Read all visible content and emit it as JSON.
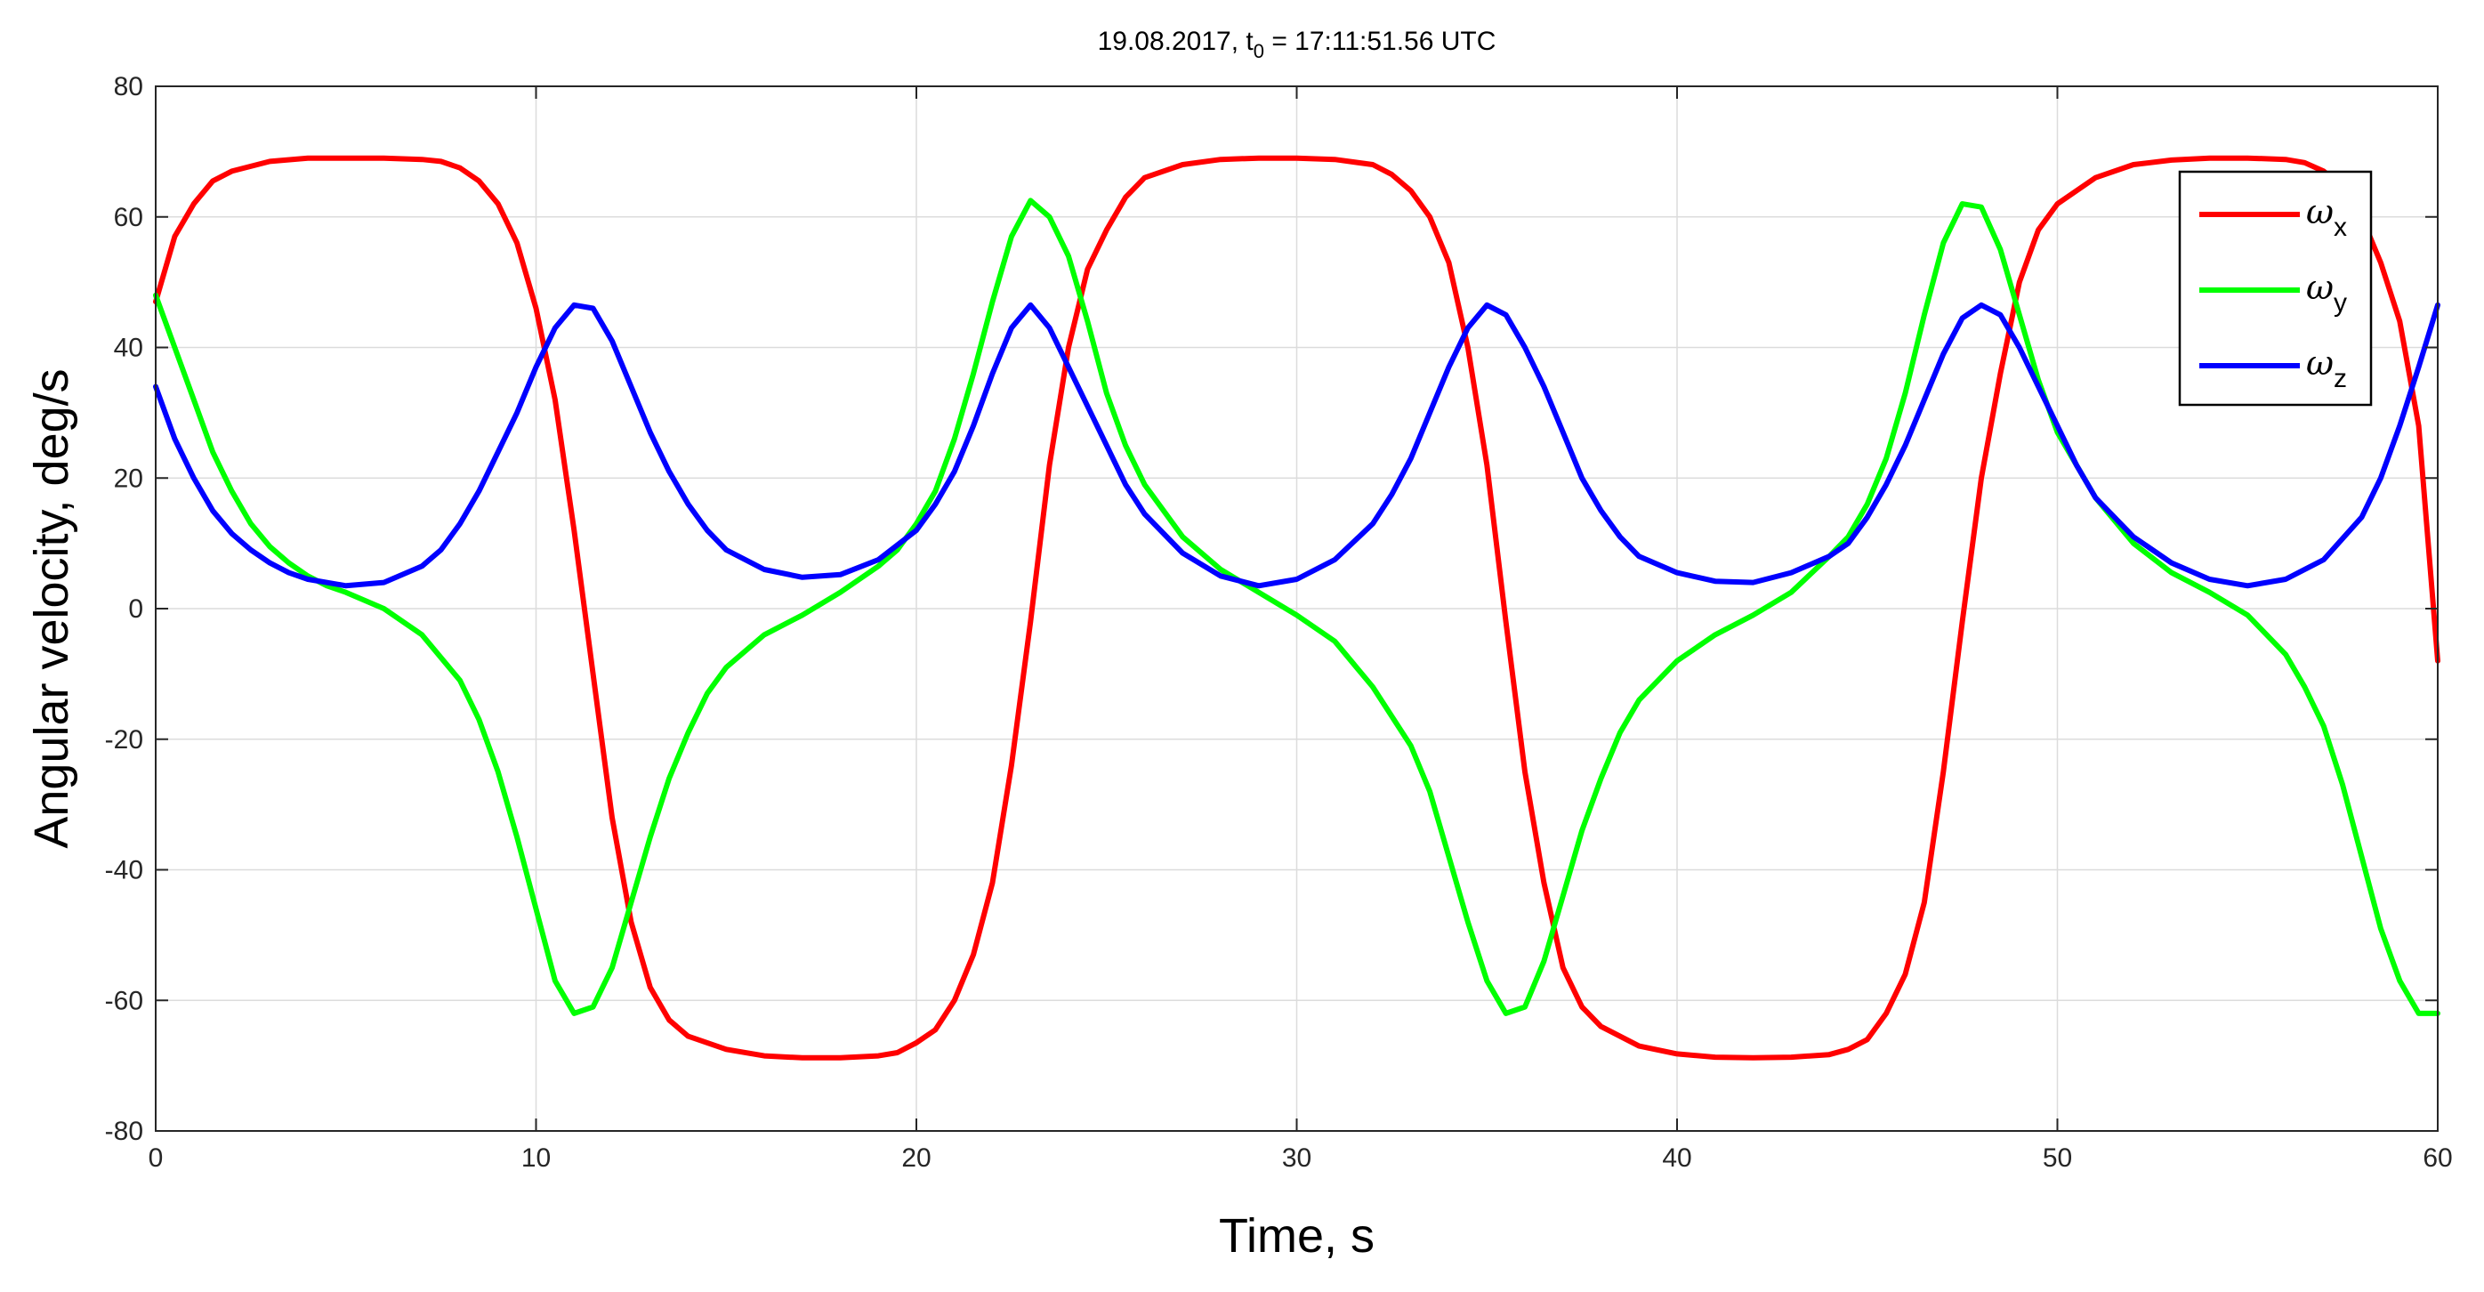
{
  "chart_data": {
    "type": "line",
    "title": {
      "date": "19.08.2017, t",
      "subscript": "0",
      "rest": " = 17:11:51.56 UTC"
    },
    "xlabel": "Time, s",
    "ylabel": "Angular velocity, deg/s",
    "xlim": [
      0,
      60
    ],
    "ylim": [
      -80,
      80
    ],
    "xticks": [
      0,
      10,
      20,
      30,
      40,
      50,
      60
    ],
    "yticks": [
      -80,
      -60,
      -40,
      -20,
      0,
      20,
      40,
      60,
      80
    ],
    "grid": true,
    "legend_position": "top-right",
    "series": [
      {
        "name": "ω",
        "subscript": "x",
        "color": "#ff0000",
        "points": [
          [
            0,
            47
          ],
          [
            0.5,
            57
          ],
          [
            1,
            62
          ],
          [
            1.5,
            65.5
          ],
          [
            2,
            67
          ],
          [
            3,
            68.5
          ],
          [
            4,
            69
          ],
          [
            5,
            69
          ],
          [
            6,
            69
          ],
          [
            7,
            68.8
          ],
          [
            7.5,
            68.5
          ],
          [
            8,
            67.5
          ],
          [
            8.5,
            65.5
          ],
          [
            9,
            62
          ],
          [
            9.5,
            56
          ],
          [
            10,
            46
          ],
          [
            10.5,
            32
          ],
          [
            11,
            12
          ],
          [
            11.5,
            -10
          ],
          [
            12,
            -32
          ],
          [
            12.5,
            -48
          ],
          [
            13,
            -58
          ],
          [
            13.5,
            -63
          ],
          [
            14,
            -65.5
          ],
          [
            15,
            -67.5
          ],
          [
            16,
            -68.5
          ],
          [
            17,
            -68.8
          ],
          [
            18,
            -68.8
          ],
          [
            19,
            -68.5
          ],
          [
            19.5,
            -68
          ],
          [
            20,
            -66.5
          ],
          [
            20.5,
            -64.5
          ],
          [
            21,
            -60
          ],
          [
            21.5,
            -53
          ],
          [
            22,
            -42
          ],
          [
            22.5,
            -24
          ],
          [
            23,
            -2
          ],
          [
            23.5,
            22
          ],
          [
            24,
            40
          ],
          [
            24.5,
            52
          ],
          [
            25,
            58
          ],
          [
            25.5,
            63
          ],
          [
            26,
            66
          ],
          [
            27,
            68
          ],
          [
            28,
            68.8
          ],
          [
            29,
            69
          ],
          [
            30,
            69
          ],
          [
            31,
            68.8
          ],
          [
            32,
            68
          ],
          [
            32.5,
            66.5
          ],
          [
            33,
            64
          ],
          [
            33.5,
            60
          ],
          [
            34,
            53
          ],
          [
            34.5,
            40
          ],
          [
            35,
            22
          ],
          [
            35.5,
            -2
          ],
          [
            36,
            -25
          ],
          [
            36.5,
            -42
          ],
          [
            37,
            -55
          ],
          [
            37.5,
            -61
          ],
          [
            38,
            -64
          ],
          [
            39,
            -67
          ],
          [
            40,
            -68.2
          ],
          [
            41,
            -68.7
          ],
          [
            42,
            -68.8
          ],
          [
            43,
            -68.7
          ],
          [
            44,
            -68.3
          ],
          [
            44.5,
            -67.5
          ],
          [
            45,
            -66
          ],
          [
            45.5,
            -62
          ],
          [
            46,
            -56
          ],
          [
            46.5,
            -45
          ],
          [
            47,
            -25
          ],
          [
            47.5,
            -2
          ],
          [
            48,
            20
          ],
          [
            48.5,
            36
          ],
          [
            49,
            50
          ],
          [
            49.5,
            58
          ],
          [
            50,
            62
          ],
          [
            51,
            66
          ],
          [
            52,
            68
          ],
          [
            53,
            68.7
          ],
          [
            54,
            69
          ],
          [
            55,
            69
          ],
          [
            56,
            68.8
          ],
          [
            56.5,
            68.3
          ],
          [
            57,
            67
          ],
          [
            57.5,
            64.5
          ],
          [
            58,
            60
          ],
          [
            58.5,
            53
          ],
          [
            59,
            44
          ],
          [
            59.5,
            28
          ],
          [
            60,
            -8
          ]
        ]
      },
      {
        "name": "ω",
        "subscript": "y",
        "color": "#00ff00",
        "points": [
          [
            0,
            48
          ],
          [
            0.5,
            40
          ],
          [
            1,
            32
          ],
          [
            1.5,
            24
          ],
          [
            2,
            18
          ],
          [
            2.5,
            13
          ],
          [
            3,
            9.5
          ],
          [
            3.5,
            7
          ],
          [
            4,
            5
          ],
          [
            4.5,
            3.5
          ],
          [
            5,
            2.5
          ],
          [
            6,
            0
          ],
          [
            7,
            -4
          ],
          [
            8,
            -11
          ],
          [
            8.5,
            -17
          ],
          [
            9,
            -25
          ],
          [
            9.5,
            -35
          ],
          [
            10,
            -46
          ],
          [
            10.5,
            -57
          ],
          [
            11,
            -62
          ],
          [
            11.5,
            -61
          ],
          [
            12,
            -55
          ],
          [
            12.5,
            -45
          ],
          [
            13,
            -35
          ],
          [
            13.5,
            -26
          ],
          [
            14,
            -19
          ],
          [
            14.5,
            -13
          ],
          [
            15,
            -9
          ],
          [
            16,
            -4
          ],
          [
            17,
            -1
          ],
          [
            18,
            2.5
          ],
          [
            19,
            6.5
          ],
          [
            19.5,
            9
          ],
          [
            20,
            13
          ],
          [
            20.5,
            18
          ],
          [
            21,
            26
          ],
          [
            21.5,
            36
          ],
          [
            22,
            47
          ],
          [
            22.5,
            57
          ],
          [
            23,
            62.5
          ],
          [
            23.5,
            60
          ],
          [
            24,
            54
          ],
          [
            24.5,
            44
          ],
          [
            25,
            33
          ],
          [
            25.5,
            25
          ],
          [
            26,
            19
          ],
          [
            27,
            11
          ],
          [
            28,
            6
          ],
          [
            29,
            2.5
          ],
          [
            30,
            -1
          ],
          [
            31,
            -5
          ],
          [
            32,
            -12
          ],
          [
            33,
            -21
          ],
          [
            33.5,
            -28
          ],
          [
            34,
            -38
          ],
          [
            34.5,
            -48
          ],
          [
            35,
            -57
          ],
          [
            35.5,
            -62
          ],
          [
            36,
            -61
          ],
          [
            36.5,
            -54
          ],
          [
            37,
            -44
          ],
          [
            37.5,
            -34
          ],
          [
            38,
            -26
          ],
          [
            38.5,
            -19
          ],
          [
            39,
            -14
          ],
          [
            40,
            -8
          ],
          [
            41,
            -4
          ],
          [
            42,
            -1
          ],
          [
            43,
            2.5
          ],
          [
            44,
            8
          ],
          [
            44.5,
            11
          ],
          [
            45,
            16
          ],
          [
            45.5,
            23
          ],
          [
            46,
            33
          ],
          [
            46.5,
            45
          ],
          [
            47,
            56
          ],
          [
            47.5,
            62
          ],
          [
            48,
            61.5
          ],
          [
            48.5,
            55
          ],
          [
            49,
            45
          ],
          [
            49.5,
            35
          ],
          [
            50,
            27
          ],
          [
            51,
            17
          ],
          [
            52,
            10
          ],
          [
            53,
            5.5
          ],
          [
            54,
            2.5
          ],
          [
            55,
            -1
          ],
          [
            56,
            -7
          ],
          [
            56.5,
            -12
          ],
          [
            57,
            -18
          ],
          [
            57.5,
            -27
          ],
          [
            58,
            -38
          ],
          [
            58.5,
            -49
          ],
          [
            59,
            -57
          ],
          [
            59.5,
            -62
          ],
          [
            60,
            -62
          ]
        ]
      },
      {
        "name": "ω",
        "subscript": "z",
        "color": "#0000ff",
        "points": [
          [
            0,
            34
          ],
          [
            0.5,
            26
          ],
          [
            1,
            20
          ],
          [
            1.5,
            15
          ],
          [
            2,
            11.5
          ],
          [
            2.5,
            9
          ],
          [
            3,
            7
          ],
          [
            3.5,
            5.5
          ],
          [
            4,
            4.5
          ],
          [
            5,
            3.5
          ],
          [
            6,
            4
          ],
          [
            7,
            6.5
          ],
          [
            7.5,
            9
          ],
          [
            8,
            13
          ],
          [
            8.5,
            18
          ],
          [
            9,
            24
          ],
          [
            9.5,
            30
          ],
          [
            10,
            37
          ],
          [
            10.5,
            43
          ],
          [
            11,
            46.5
          ],
          [
            11.5,
            46
          ],
          [
            12,
            41
          ],
          [
            12.5,
            34
          ],
          [
            13,
            27
          ],
          [
            13.5,
            21
          ],
          [
            14,
            16
          ],
          [
            14.5,
            12
          ],
          [
            15,
            9
          ],
          [
            16,
            6
          ],
          [
            17,
            4.8
          ],
          [
            18,
            5.2
          ],
          [
            19,
            7.5
          ],
          [
            20,
            12
          ],
          [
            20.5,
            16
          ],
          [
            21,
            21
          ],
          [
            21.5,
            28
          ],
          [
            22,
            36
          ],
          [
            22.5,
            43
          ],
          [
            23,
            46.5
          ],
          [
            23.5,
            43
          ],
          [
            24,
            37
          ],
          [
            24.5,
            31
          ],
          [
            25,
            25
          ],
          [
            25.5,
            19
          ],
          [
            26,
            14.5
          ],
          [
            27,
            8.5
          ],
          [
            28,
            5
          ],
          [
            29,
            3.5
          ],
          [
            30,
            4.5
          ],
          [
            31,
            7.5
          ],
          [
            32,
            13
          ],
          [
            32.5,
            17.5
          ],
          [
            33,
            23
          ],
          [
            33.5,
            30
          ],
          [
            34,
            37
          ],
          [
            34.5,
            43
          ],
          [
            35,
            46.5
          ],
          [
            35.5,
            45
          ],
          [
            36,
            40
          ],
          [
            36.5,
            34
          ],
          [
            37,
            27
          ],
          [
            37.5,
            20
          ],
          [
            38,
            15
          ],
          [
            38.5,
            11
          ],
          [
            39,
            8
          ],
          [
            40,
            5.5
          ],
          [
            41,
            4.2
          ],
          [
            42,
            4
          ],
          [
            43,
            5.5
          ],
          [
            44,
            8
          ],
          [
            44.5,
            10
          ],
          [
            45,
            14
          ],
          [
            45.5,
            19
          ],
          [
            46,
            25
          ],
          [
            46.5,
            32
          ],
          [
            47,
            39
          ],
          [
            47.5,
            44.5
          ],
          [
            48,
            46.5
          ],
          [
            48.5,
            45
          ],
          [
            49,
            40
          ],
          [
            49.5,
            34
          ],
          [
            50,
            28
          ],
          [
            50.5,
            22
          ],
          [
            51,
            17
          ],
          [
            52,
            11
          ],
          [
            53,
            7
          ],
          [
            54,
            4.5
          ],
          [
            55,
            3.5
          ],
          [
            56,
            4.5
          ],
          [
            57,
            7.5
          ],
          [
            58,
            14
          ],
          [
            58.5,
            20
          ],
          [
            59,
            28
          ],
          [
            59.5,
            37
          ],
          [
            60,
            46.5
          ]
        ]
      }
    ]
  }
}
